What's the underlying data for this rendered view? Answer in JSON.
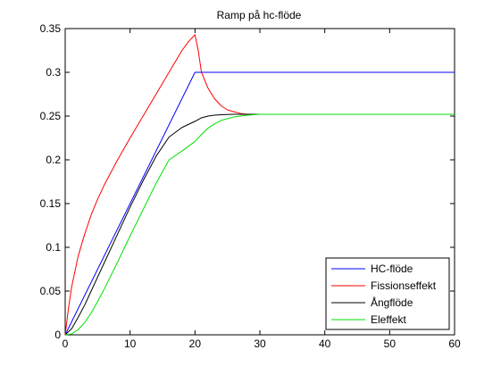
{
  "chart_data": {
    "type": "line",
    "title": "Ramp på hc-flöde",
    "xlabel": "",
    "ylabel": "",
    "xlim": [
      0,
      60
    ],
    "ylim": [
      0,
      0.35
    ],
    "xticks": [
      0,
      10,
      20,
      30,
      40,
      50,
      60
    ],
    "xtick_labels": [
      "0",
      "10",
      "20",
      "30",
      "40",
      "50",
      "60"
    ],
    "yticks": [
      0,
      0.05,
      0.1,
      0.15,
      0.2,
      0.25,
      0.3,
      0.35
    ],
    "ytick_labels": [
      "0",
      "0.05",
      "0.1",
      "0.15",
      "0.2",
      "0.25",
      "0.3",
      "0.35"
    ],
    "grid": false,
    "legend_position": "bottom-right",
    "series": [
      {
        "name": "HC-flöde",
        "color": "#0000ff",
        "x": [
          0,
          20,
          60
        ],
        "y": [
          0,
          0.3,
          0.3
        ]
      },
      {
        "name": "Fissionseffekt",
        "color": "#ff0000",
        "x": [
          0,
          0.5,
          1,
          2,
          3,
          4,
          5,
          6,
          8,
          10,
          12,
          14,
          16,
          18,
          19,
          20,
          20.5,
          21,
          22,
          23,
          24,
          25,
          26,
          27,
          28,
          30
        ],
        "y": [
          0,
          0.03,
          0.055,
          0.09,
          0.115,
          0.137,
          0.155,
          0.171,
          0.199,
          0.225,
          0.25,
          0.275,
          0.3,
          0.325,
          0.335,
          0.343,
          0.325,
          0.3,
          0.282,
          0.27,
          0.262,
          0.257,
          0.255,
          0.253,
          0.252,
          0.252
        ]
      },
      {
        "name": "Ångflöde",
        "color": "#000000",
        "x": [
          0,
          1,
          2,
          3,
          4,
          5,
          6,
          8,
          10,
          12,
          14,
          16,
          18,
          20,
          21,
          22,
          23,
          24,
          26,
          28,
          30,
          33
        ],
        "y": [
          0,
          0.007,
          0.02,
          0.034,
          0.05,
          0.066,
          0.082,
          0.114,
          0.146,
          0.176,
          0.204,
          0.226,
          0.237,
          0.244,
          0.248,
          0.25,
          0.251,
          0.2515,
          0.252,
          0.252,
          0.252,
          0.252
        ]
      },
      {
        "name": "Eleffekt",
        "color": "#00e000",
        "x": [
          0,
          1,
          2,
          3,
          4,
          5,
          6,
          8,
          10,
          12,
          14,
          16,
          18,
          20,
          21,
          22,
          23,
          24,
          26,
          28,
          30,
          35,
          60
        ],
        "y": [
          0,
          0.001,
          0.006,
          0.014,
          0.025,
          0.038,
          0.052,
          0.082,
          0.113,
          0.143,
          0.173,
          0.2,
          0.21,
          0.221,
          0.229,
          0.236,
          0.241,
          0.245,
          0.249,
          0.251,
          0.252,
          0.252,
          0.252
        ]
      }
    ]
  }
}
